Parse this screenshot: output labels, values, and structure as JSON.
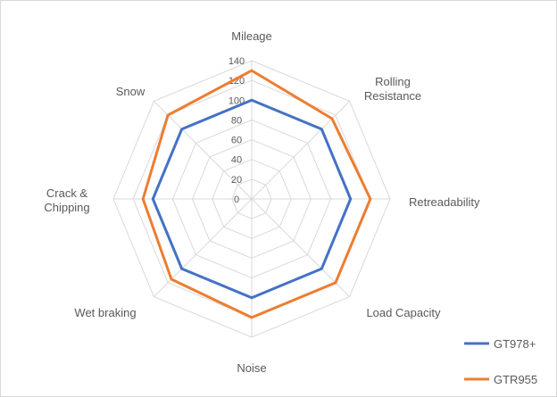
{
  "chart_data": {
    "type": "radar",
    "title": "",
    "categories": [
      [
        "Mileage"
      ],
      [
        "Rolling",
        "Resistance"
      ],
      [
        "Retreadability"
      ],
      [
        "Load Capacity"
      ],
      [
        "Noise"
      ],
      [
        "Wet braking"
      ],
      [
        "Crack &",
        "Chipping"
      ],
      [
        "Snow"
      ]
    ],
    "radial_axis": {
      "min": 0,
      "max": 140,
      "step": 20,
      "tick_labels": [
        "0",
        "20",
        "40",
        "60",
        "80",
        "100",
        "120",
        "140"
      ]
    },
    "grid": true,
    "legend_position": "bottom-right",
    "series": [
      {
        "name": "GT978+",
        "color": "#4472c4",
        "values": [
          100,
          100,
          100,
          100,
          100,
          100,
          100,
          100
        ]
      },
      {
        "name": "GTR955",
        "color": "#ed7d31",
        "values": [
          130,
          115,
          120,
          120,
          120,
          115,
          110,
          120
        ]
      }
    ]
  }
}
